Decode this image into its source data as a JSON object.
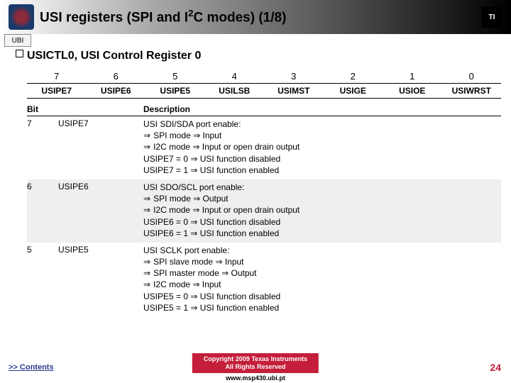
{
  "header": {
    "title_pre": "USI registers (SPI and I",
    "title_sup": "2",
    "title_post": "C modes) (1/8)",
    "ubi": "UBI",
    "ti": "TI"
  },
  "subtitle": "USICTL0, USI Control Register 0",
  "bit_nums": [
    "7",
    "6",
    "5",
    "4",
    "3",
    "2",
    "1",
    "0"
  ],
  "bit_names": [
    "USIPE7",
    "USIPE6",
    "USIPE5",
    "USILSB",
    "USIMST",
    "USIGE",
    "USIOE",
    "USIWRST"
  ],
  "desc_head": {
    "bit": "Bit",
    "name": "",
    "desc": "Description"
  },
  "rows": [
    {
      "bit": "7",
      "name": "USIPE7",
      "lines": [
        "USI SDI/SDA port enable:",
        "SPI mode ⇒ Input",
        "I2C mode ⇒ Input or open drain output",
        "USIPE7 = 0  ⇒  USI function disabled",
        "USIPE7 = 1  ⇒  USI function enabled"
      ],
      "arrows": [
        false,
        true,
        true,
        false,
        false
      ]
    },
    {
      "bit": "6",
      "name": "USIPE6",
      "lines": [
        "USI SDO/SCL port enable:",
        "SPI mode ⇒ Output",
        "I2C mode ⇒ Input or open drain output",
        "USIPE6 = 0  ⇒  USI function disabled",
        "USIPE6 = 1  ⇒  USI function enabled"
      ],
      "arrows": [
        false,
        true,
        true,
        false,
        false
      ]
    },
    {
      "bit": "5",
      "name": "USIPE5",
      "lines": [
        "USI SCLK port enable:",
        "SPI slave mode ⇒ Input",
        "SPI master mode ⇒ Output",
        "I2C mode ⇒ Input",
        "USIPE5 = 0  ⇒  USI function disabled",
        "USIPE5 = 1  ⇒  USI function enabled"
      ],
      "arrows": [
        false,
        true,
        true,
        true,
        false,
        false
      ]
    }
  ],
  "footer": {
    "contents": ">> Contents",
    "copy1": "Copyright  2009 Texas Instruments",
    "copy2": "All Rights Reserved",
    "site": "www.msp430.ubi.pt",
    "slide": "24"
  }
}
